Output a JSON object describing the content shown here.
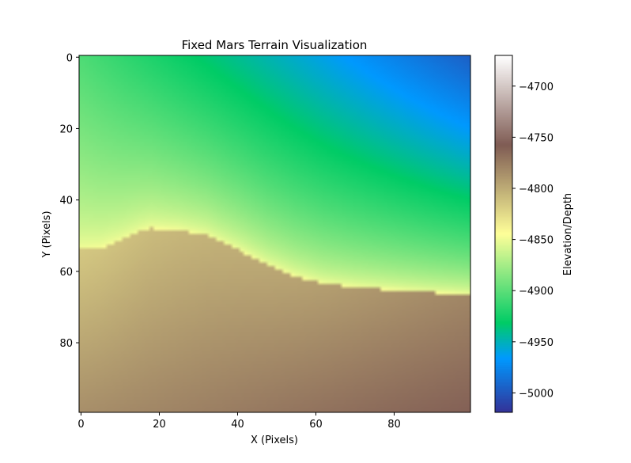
{
  "chart_data": {
    "type": "heatmap",
    "title": "Fixed Mars Terrain Visualization",
    "xlabel": "X (Pixels)",
    "ylabel": "Y (Pixels)",
    "xlim": [
      -0.5,
      99.5
    ],
    "ylim": [
      99.5,
      -0.5
    ],
    "grid_shape": [
      100,
      100
    ],
    "x_ticks": [
      0,
      20,
      40,
      60,
      80
    ],
    "y_ticks": [
      0,
      20,
      40,
      60,
      80
    ],
    "colormap": "terrain",
    "colorbar": {
      "label": "Elevation/Depth",
      "vmin": -5019,
      "vmax": -4670,
      "ticks": [
        -4700,
        -4750,
        -4800,
        -4850,
        -4900,
        -4950,
        -5000
      ]
    },
    "boundary_profile": {
      "x": [
        0,
        5,
        10,
        15,
        18,
        25,
        32,
        40,
        48,
        55,
        62,
        70,
        80,
        90,
        99
      ],
      "y": [
        54,
        53.5,
        51.5,
        49,
        48,
        48.5,
        50,
        54,
        58.5,
        61.5,
        63.5,
        64.5,
        65.3,
        66,
        66.5
      ]
    },
    "elevation_anchors": {
      "top_left": -4905,
      "top_right": -4995,
      "shelf_near_boundary": -4845,
      "lower_left": -4805,
      "lower_right": -4760
    }
  }
}
